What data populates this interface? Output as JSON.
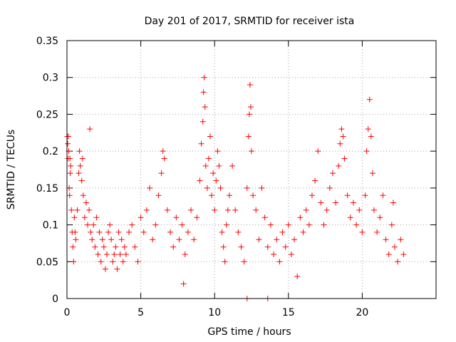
{
  "chart_data": {
    "type": "scatter",
    "title": "Day 201 of 2017, SRMTID for receiver ista",
    "xlabel": "GPS time / hours",
    "ylabel": "SRMTID / TECUs",
    "xlim": [
      0,
      25
    ],
    "ylim": [
      0,
      0.35
    ],
    "grid": true,
    "marker": "+",
    "color": "#ff0000",
    "x_ticks": [
      0,
      5,
      10,
      15,
      20
    ],
    "x_tick_labels": [
      "0",
      "5",
      "10",
      "15",
      "20"
    ],
    "y_ticks": [
      0,
      0.05,
      0.1,
      0.15,
      0.2,
      0.25,
      0.3,
      0.35
    ],
    "y_tick_labels": [
      "0",
      "0.05",
      "0.1",
      "0.15",
      "0.2",
      "0.25",
      "0.3",
      "0.35"
    ],
    "series": [
      {
        "name": "SRMTID",
        "points": [
          [
            0.02,
            0.22
          ],
          [
            0.05,
            0.21
          ],
          [
            0.08,
            0.19
          ],
          [
            0.1,
            0.22
          ],
          [
            0.12,
            0.2
          ],
          [
            0.15,
            0.15
          ],
          [
            0.18,
            0.14
          ],
          [
            0.2,
            0.19
          ],
          [
            0.22,
            0.17
          ],
          [
            0.25,
            0.18
          ],
          [
            0.3,
            0.12
          ],
          [
            0.35,
            0.09
          ],
          [
            0.4,
            0.07
          ],
          [
            0.45,
            0.05
          ],
          [
            0.5,
            0.11
          ],
          [
            0.55,
            0.09
          ],
          [
            0.6,
            0.08
          ],
          [
            0.7,
            0.12
          ],
          [
            0.8,
            0.17
          ],
          [
            0.85,
            0.2
          ],
          [
            0.9,
            0.18
          ],
          [
            1.0,
            0.16
          ],
          [
            1.05,
            0.19
          ],
          [
            1.1,
            0.14
          ],
          [
            1.2,
            0.11
          ],
          [
            1.3,
            0.13
          ],
          [
            1.4,
            0.1
          ],
          [
            1.5,
            0.12
          ],
          [
            1.55,
            0.23
          ],
          [
            1.6,
            0.09
          ],
          [
            1.7,
            0.08
          ],
          [
            1.8,
            0.1
          ],
          [
            1.9,
            0.07
          ],
          [
            2.0,
            0.11
          ],
          [
            2.1,
            0.06
          ],
          [
            2.2,
            0.09
          ],
          [
            2.3,
            0.05
          ],
          [
            2.4,
            0.08
          ],
          [
            2.5,
            0.07
          ],
          [
            2.6,
            0.04
          ],
          [
            2.7,
            0.06
          ],
          [
            2.8,
            0.09
          ],
          [
            2.9,
            0.1
          ],
          [
            3.0,
            0.08
          ],
          [
            3.1,
            0.05
          ],
          [
            3.2,
            0.06
          ],
          [
            3.3,
            0.07
          ],
          [
            3.4,
            0.04
          ],
          [
            3.5,
            0.09
          ],
          [
            3.6,
            0.06
          ],
          [
            3.7,
            0.08
          ],
          [
            3.8,
            0.05
          ],
          [
            3.9,
            0.07
          ],
          [
            4.0,
            0.06
          ],
          [
            4.2,
            0.09
          ],
          [
            4.4,
            0.1
          ],
          [
            4.6,
            0.07
          ],
          [
            4.8,
            0.05
          ],
          [
            5.0,
            0.11
          ],
          [
            5.2,
            0.09
          ],
          [
            5.4,
            0.12
          ],
          [
            5.6,
            0.15
          ],
          [
            5.8,
            0.08
          ],
          [
            6.0,
            0.1
          ],
          [
            6.2,
            0.14
          ],
          [
            6.4,
            0.17
          ],
          [
            6.5,
            0.2
          ],
          [
            6.6,
            0.19
          ],
          [
            6.8,
            0.12
          ],
          [
            7.0,
            0.09
          ],
          [
            7.2,
            0.07
          ],
          [
            7.4,
            0.11
          ],
          [
            7.6,
            0.08
          ],
          [
            7.8,
            0.1
          ],
          [
            7.9,
            0.02
          ],
          [
            8.0,
            0.06
          ],
          [
            8.2,
            0.09
          ],
          [
            8.4,
            0.12
          ],
          [
            8.6,
            0.08
          ],
          [
            8.8,
            0.11
          ],
          [
            9.0,
            0.16
          ],
          [
            9.1,
            0.21
          ],
          [
            9.2,
            0.24
          ],
          [
            9.25,
            0.28
          ],
          [
            9.3,
            0.3
          ],
          [
            9.35,
            0.26
          ],
          [
            9.4,
            0.18
          ],
          [
            9.5,
            0.15
          ],
          [
            9.6,
            0.19
          ],
          [
            9.7,
            0.22
          ],
          [
            9.8,
            0.14
          ],
          [
            9.9,
            0.17
          ],
          [
            10.0,
            0.12
          ],
          [
            10.1,
            0.16
          ],
          [
            10.2,
            0.2
          ],
          [
            10.3,
            0.18
          ],
          [
            10.4,
            0.15
          ],
          [
            10.5,
            0.09
          ],
          [
            10.6,
            0.07
          ],
          [
            10.7,
            0.05
          ],
          [
            10.8,
            0.1
          ],
          [
            10.9,
            0.12
          ],
          [
            11.0,
            0.14
          ],
          [
            11.2,
            0.18
          ],
          [
            11.4,
            0.12
          ],
          [
            11.6,
            0.09
          ],
          [
            11.8,
            0.07
          ],
          [
            12.0,
            0.05
          ],
          [
            12.2,
            0.15
          ],
          [
            12.3,
            0.22
          ],
          [
            12.35,
            0.25
          ],
          [
            12.4,
            0.29
          ],
          [
            12.45,
            0.26
          ],
          [
            12.5,
            0.2
          ],
          [
            12.6,
            0.14
          ],
          [
            12.8,
            0.12
          ],
          [
            13.0,
            0.08
          ],
          [
            13.2,
            0.15
          ],
          [
            13.4,
            0.11
          ],
          [
            13.6,
            0.07
          ],
          [
            13.8,
            0.1
          ],
          [
            14.0,
            0.06
          ],
          [
            14.2,
            0.08
          ],
          [
            14.4,
            0.05
          ],
          [
            14.6,
            0.09
          ],
          [
            14.8,
            0.07
          ],
          [
            15.0,
            0.1
          ],
          [
            15.2,
            0.06
          ],
          [
            15.4,
            0.08
          ],
          [
            15.6,
            0.03
          ],
          [
            15.8,
            0.11
          ],
          [
            16.0,
            0.09
          ],
          [
            16.2,
            0.12
          ],
          [
            16.4,
            0.1
          ],
          [
            16.6,
            0.14
          ],
          [
            16.8,
            0.16
          ],
          [
            17.0,
            0.2
          ],
          [
            17.2,
            0.13
          ],
          [
            17.4,
            0.1
          ],
          [
            17.6,
            0.12
          ],
          [
            17.8,
            0.15
          ],
          [
            18.0,
            0.17
          ],
          [
            18.2,
            0.13
          ],
          [
            18.4,
            0.18
          ],
          [
            18.5,
            0.21
          ],
          [
            18.6,
            0.23
          ],
          [
            18.7,
            0.22
          ],
          [
            18.8,
            0.19
          ],
          [
            19.0,
            0.14
          ],
          [
            19.2,
            0.11
          ],
          [
            19.4,
            0.13
          ],
          [
            19.6,
            0.1
          ],
          [
            19.8,
            0.12
          ],
          [
            20.0,
            0.09
          ],
          [
            20.2,
            0.14
          ],
          [
            20.3,
            0.2
          ],
          [
            20.4,
            0.23
          ],
          [
            20.5,
            0.27
          ],
          [
            20.6,
            0.22
          ],
          [
            20.7,
            0.17
          ],
          [
            20.8,
            0.12
          ],
          [
            21.0,
            0.09
          ],
          [
            21.2,
            0.11
          ],
          [
            21.4,
            0.14
          ],
          [
            21.6,
            0.08
          ],
          [
            21.8,
            0.06
          ],
          [
            22.0,
            0.1
          ],
          [
            22.1,
            0.13
          ],
          [
            22.2,
            0.07
          ],
          [
            22.4,
            0.05
          ],
          [
            22.6,
            0.08
          ],
          [
            22.8,
            0.06
          ],
          [
            12.2,
            0.0
          ],
          [
            13.6,
            0.0
          ]
        ]
      }
    ]
  }
}
